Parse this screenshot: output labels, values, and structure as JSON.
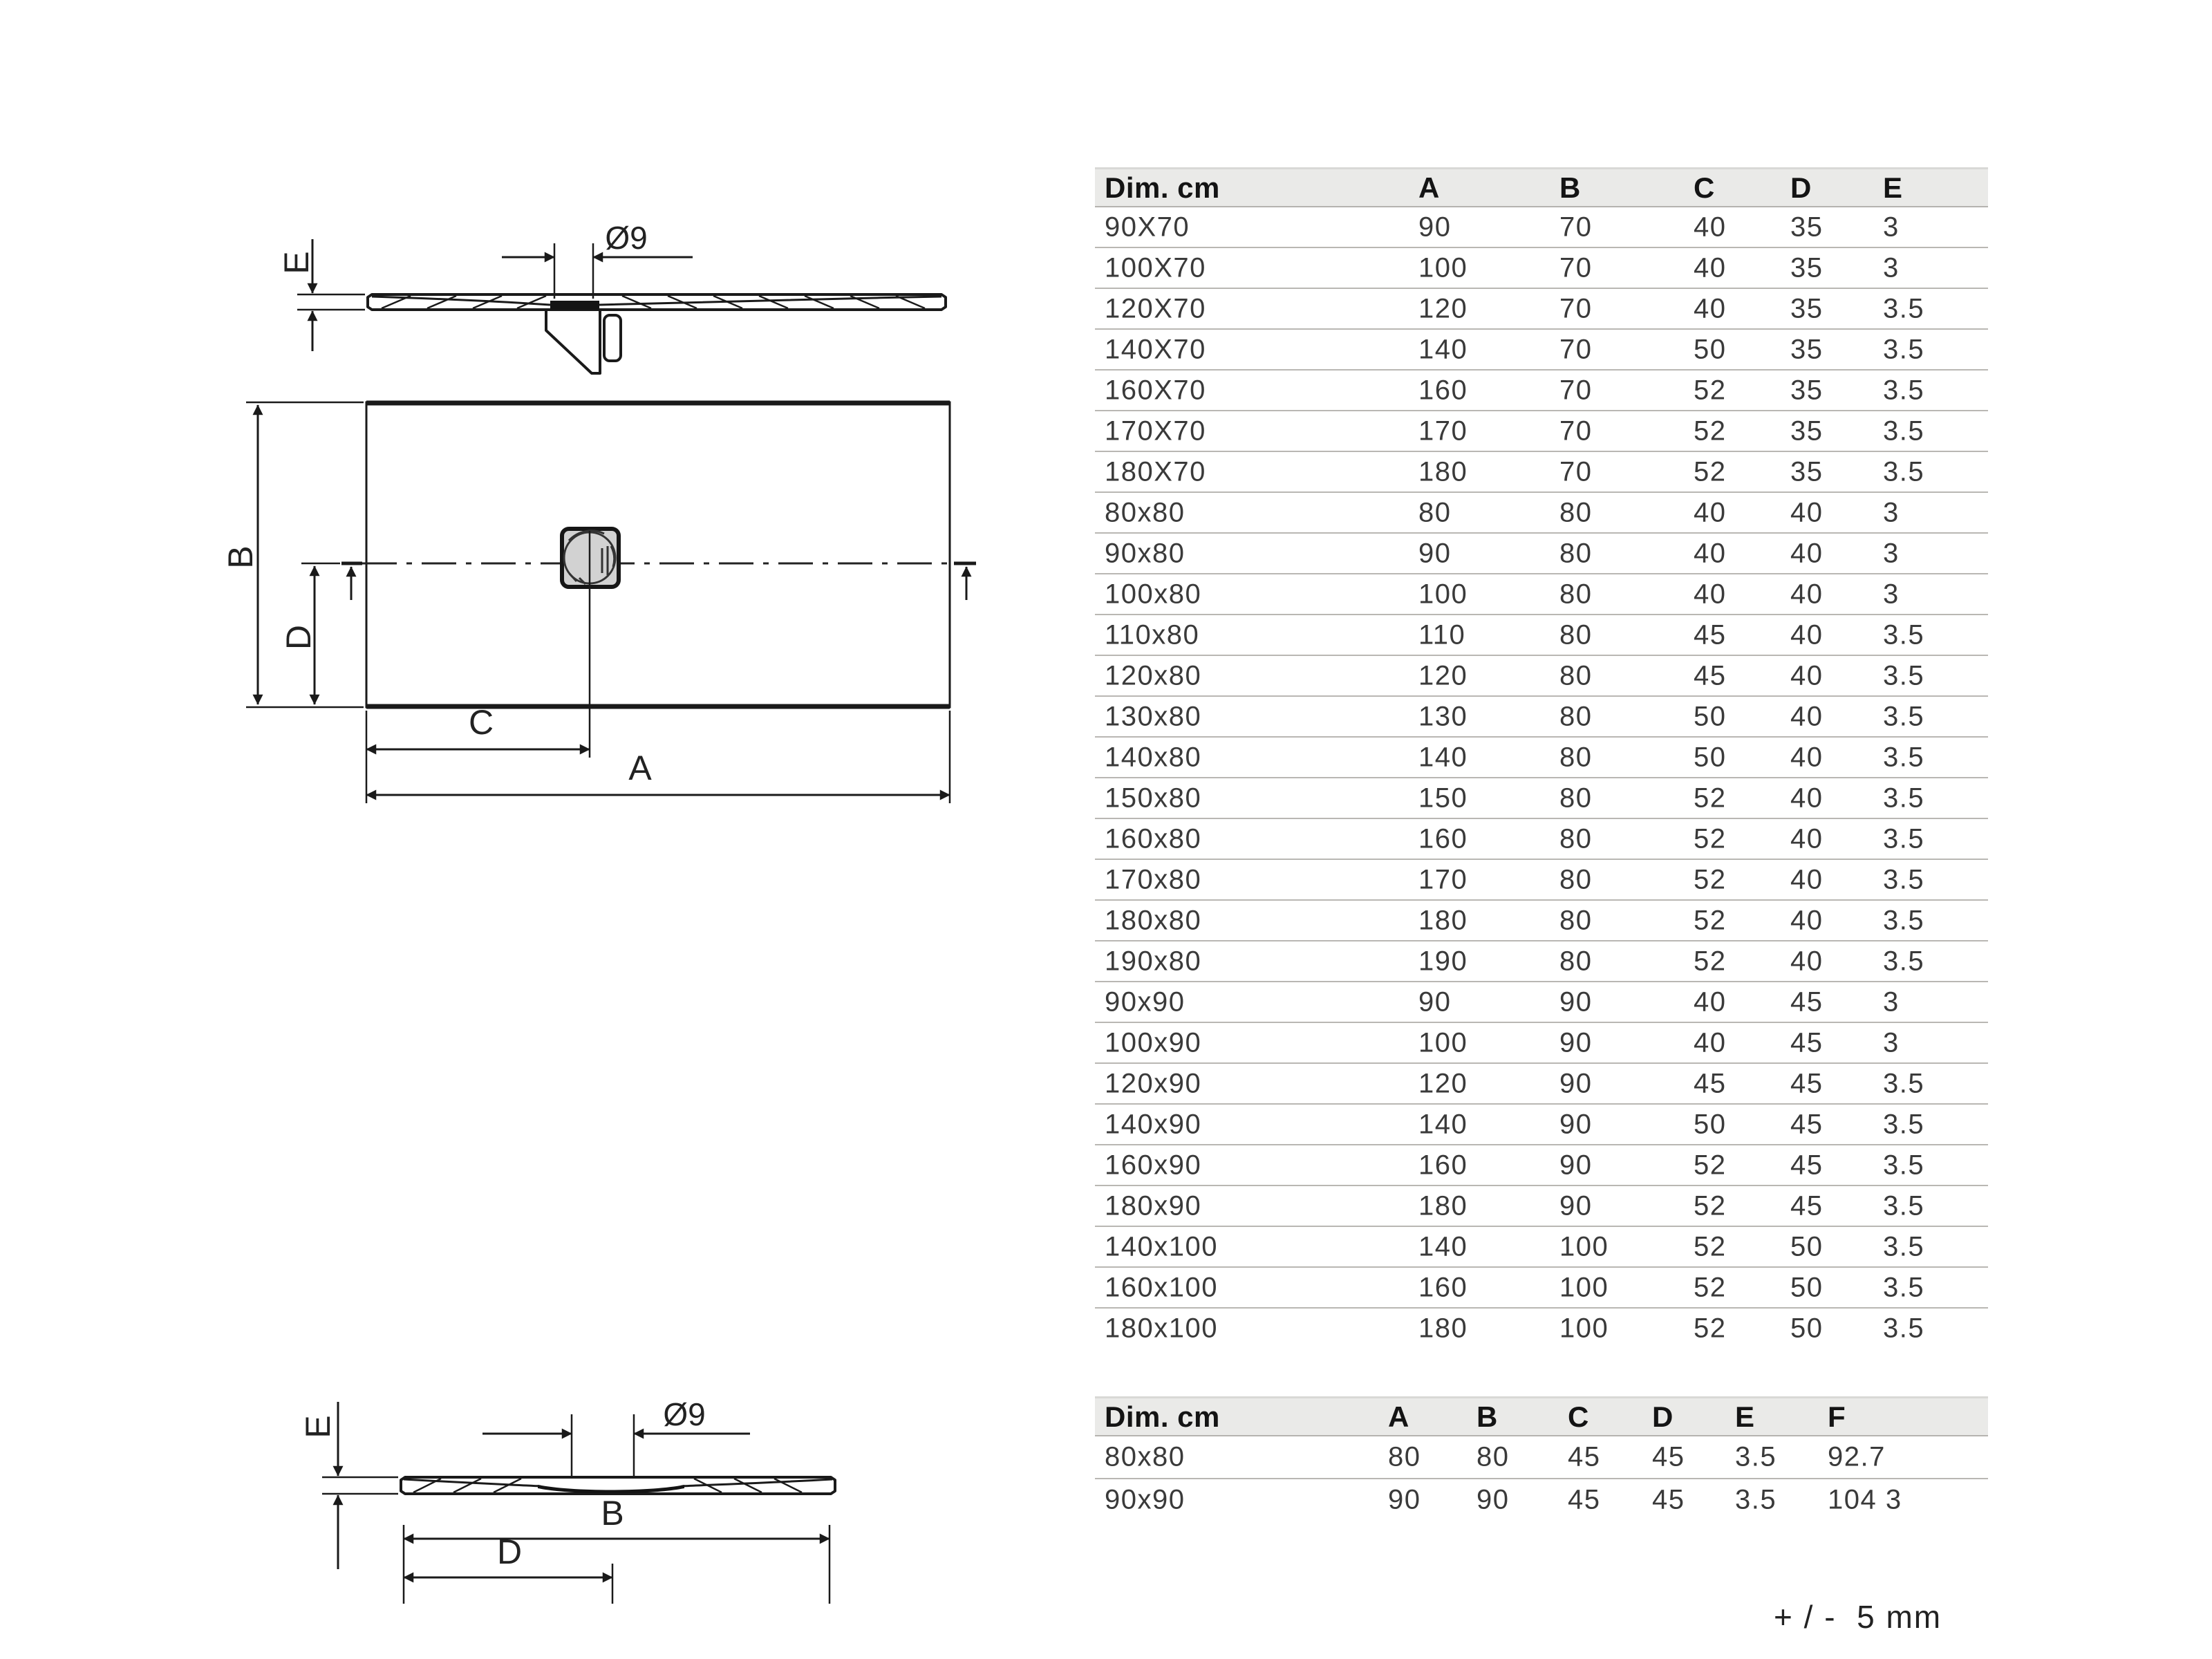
{
  "drawings": {
    "top_section": {
      "thickness_label": "E",
      "drain_diameter_label": "Ø9"
    },
    "plan": {
      "width_label": "B",
      "drain_offset_y_label": "D",
      "drain_offset_x_label": "C",
      "length_label": "A"
    },
    "bottom_section": {
      "thickness_label": "E",
      "drain_diameter_label": "Ø9",
      "width_label": "B",
      "drain_offset_label": "D"
    }
  },
  "dimensions_table": {
    "headers": [
      "Dim. cm",
      "A",
      "B",
      "C",
      "D",
      "E"
    ],
    "rows": [
      [
        "90X70",
        "90",
        "70",
        "40",
        "35",
        "3"
      ],
      [
        "100X70",
        "100",
        "70",
        "40",
        "35",
        "3"
      ],
      [
        "120X70",
        "120",
        "70",
        "40",
        "35",
        "3.5"
      ],
      [
        "140X70",
        "140",
        "70",
        "50",
        "35",
        "3.5"
      ],
      [
        "160X70",
        "160",
        "70",
        "52",
        "35",
        "3.5"
      ],
      [
        "170X70",
        "170",
        "70",
        "52",
        "35",
        "3.5"
      ],
      [
        "180X70",
        "180",
        "70",
        "52",
        "35",
        "3.5"
      ],
      [
        "80x80",
        "80",
        "80",
        "40",
        "40",
        "3"
      ],
      [
        "90x80",
        "90",
        "80",
        "40",
        "40",
        "3"
      ],
      [
        "100x80",
        "100",
        "80",
        "40",
        "40",
        "3"
      ],
      [
        "110x80",
        "110",
        "80",
        "45",
        "40",
        "3.5"
      ],
      [
        "120x80",
        "120",
        "80",
        "45",
        "40",
        "3.5"
      ],
      [
        "130x80",
        "130",
        "80",
        "50",
        "40",
        "3.5"
      ],
      [
        "140x80",
        "140",
        "80",
        "50",
        "40",
        "3.5"
      ],
      [
        "150x80",
        "150",
        "80",
        "52",
        "40",
        "3.5"
      ],
      [
        "160x80",
        "160",
        "80",
        "52",
        "40",
        "3.5"
      ],
      [
        "170x80",
        "170",
        "80",
        "52",
        "40",
        "3.5"
      ],
      [
        "180x80",
        "180",
        "80",
        "52",
        "40",
        "3.5"
      ],
      [
        "190x80",
        "190",
        "80",
        "52",
        "40",
        "3.5"
      ],
      [
        "90x90",
        "90",
        "90",
        "40",
        "45",
        "3"
      ],
      [
        "100x90",
        "100",
        "90",
        "40",
        "45",
        "3"
      ],
      [
        "120x90",
        "120",
        "90",
        "45",
        "45",
        "3.5"
      ],
      [
        "140x90",
        "140",
        "90",
        "50",
        "45",
        "3.5"
      ],
      [
        "160x90",
        "160",
        "90",
        "52",
        "45",
        "3.5"
      ],
      [
        "180x90",
        "180",
        "90",
        "52",
        "45",
        "3.5"
      ],
      [
        "140x100",
        "140",
        "100",
        "52",
        "50",
        "3.5"
      ],
      [
        "160x100",
        "160",
        "100",
        "52",
        "50",
        "3.5"
      ],
      [
        "180x100",
        "180",
        "100",
        "52",
        "50",
        "3.5"
      ]
    ]
  },
  "square_table": {
    "headers": [
      "Dim. cm",
      "A",
      "B",
      "C",
      "D",
      "E",
      "F"
    ],
    "rows": [
      [
        "80x80",
        "80",
        "80",
        "45",
        "45",
        "3.5",
        "92.7"
      ],
      [
        "90x90",
        "90",
        "90",
        "45",
        "45",
        "3.5",
        "104 3"
      ]
    ]
  },
  "tolerance_note": "+ / -  5 mm",
  "colors": {
    "line": "#1a1a1a",
    "header_bg": "#eaeae8",
    "row_separator": "#b9b7b3",
    "table_text": "#3a3a3a",
    "drain_fill": "#d2d2d2"
  }
}
